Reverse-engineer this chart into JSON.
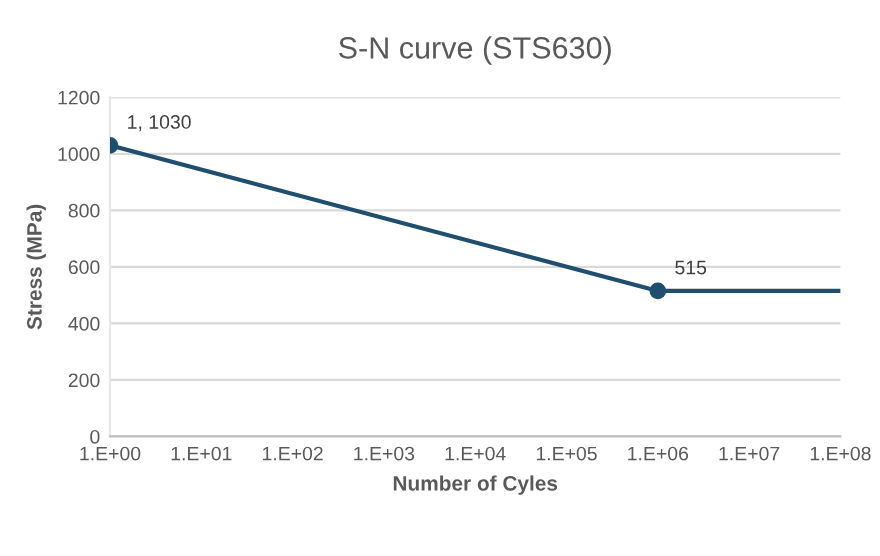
{
  "chart_data": {
    "type": "line",
    "title": "S-N curve (STS630)",
    "xlabel": "Number of Cyles",
    "ylabel": "Stress (MPa)",
    "grid": "y",
    "line_style": "solid",
    "categories": [
      "1.E+00",
      "1.E+01",
      "1.E+02",
      "1.E+03",
      "1.E+04",
      "1.E+05",
      "1.E+06",
      "1.E+07",
      "1.E+08"
    ],
    "ylim": [
      0,
      1200
    ],
    "yticks": [
      0,
      200,
      400,
      600,
      800,
      1000,
      1200
    ],
    "series": [
      {
        "color": "#1f4e6e",
        "marker": "circle",
        "x": [
          "1.E+00",
          "1.E+06"
        ],
        "values": [
          1030,
          515
        ]
      },
      {
        "color": "#1f4e6e",
        "marker": "none",
        "x": [
          "1.E+06",
          "1.E+08"
        ],
        "values": [
          515,
          515
        ]
      }
    ],
    "annotations": [
      {
        "text": "1, 1030",
        "x": "1.E+00",
        "y": 1030
      },
      {
        "text": "515",
        "x": "1.E+06",
        "y": 515
      }
    ]
  }
}
